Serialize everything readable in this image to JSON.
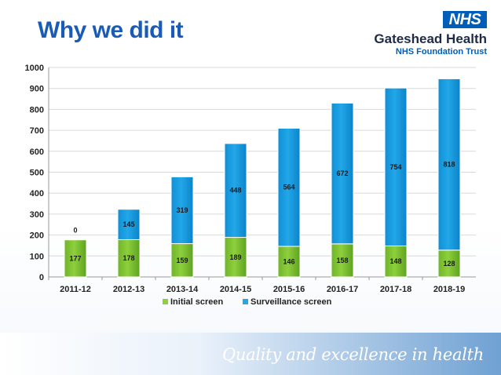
{
  "header": {
    "title": "Why we did it",
    "logo_text": "NHS",
    "org_name": "Gateshead Health",
    "org_subtitle": "NHS Foundation Trust"
  },
  "footer": {
    "tagline": "Quality and excellence in health"
  },
  "colors": {
    "initial": "#8ecf3c",
    "surveillance": "#22a7e8",
    "title": "#1a5bb8",
    "nhs_blue": "#005eb8"
  },
  "chart_data": {
    "type": "bar",
    "stacked": true,
    "categories": [
      "2011-12",
      "2012-13",
      "2013-14",
      "2014-15",
      "2015-16",
      "2016-17",
      "2017-18",
      "2018-19"
    ],
    "series": [
      {
        "name": "Initial screen",
        "values": [
          177,
          178,
          159,
          189,
          146,
          158,
          148,
          128
        ]
      },
      {
        "name": "Surveillance screen",
        "values": [
          0,
          145,
          319,
          448,
          564,
          672,
          754,
          818
        ]
      }
    ],
    "ylim": [
      0,
      1000
    ],
    "yticks": [
      0,
      100,
      200,
      300,
      400,
      500,
      600,
      700,
      800,
      900,
      1000
    ],
    "grid": true,
    "legend": "bottom"
  }
}
